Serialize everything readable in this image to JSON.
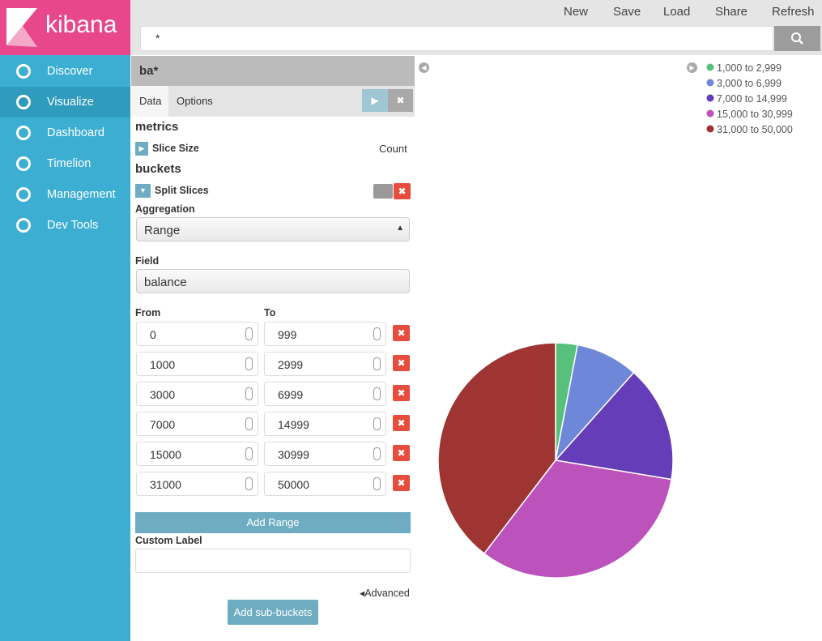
{
  "brand": "kibana",
  "nav": [
    "Discover",
    "Visualize",
    "Dashboard",
    "Timelion",
    "Management",
    "Dev Tools"
  ],
  "top_menu": [
    "New",
    "Save",
    "Load",
    "Share",
    "Refresh"
  ],
  "query": "*",
  "panel": {
    "index": "ba*",
    "tabs": [
      "Data",
      "Options"
    ],
    "metrics_title": "metrics",
    "metric_label": "Slice Size",
    "metric_value": "Count",
    "buckets_title": "buckets",
    "bucket_label": "Split Slices",
    "aggregation_label": "Aggregation",
    "aggregation": "Range",
    "field_label": "Field",
    "field": "balance",
    "from_label": "From",
    "to_label": "To",
    "ranges": [
      [
        0,
        999
      ],
      [
        1000,
        2999
      ],
      [
        3000,
        6999
      ],
      [
        7000,
        14999
      ],
      [
        15000,
        30999
      ],
      [
        31000,
        50000
      ]
    ],
    "add_range": "Add Range",
    "custom_label": "Custom Label",
    "advanced": "Advanced",
    "add_sub_buckets": "Add sub-buckets"
  },
  "chart_data": {
    "type": "pie",
    "categories": [
      "1,000 to 2,999",
      "3,000 to 6,999",
      "7,000 to 14,999",
      "15,000 to 30,999",
      "31,000 to 50,000"
    ],
    "values": [
      3,
      8.6,
      16,
      32.8,
      39.6
    ],
    "colors": [
      "#57c17b",
      "#6f87d8",
      "#663db8",
      "#bc52bc",
      "#9e3533"
    ]
  }
}
